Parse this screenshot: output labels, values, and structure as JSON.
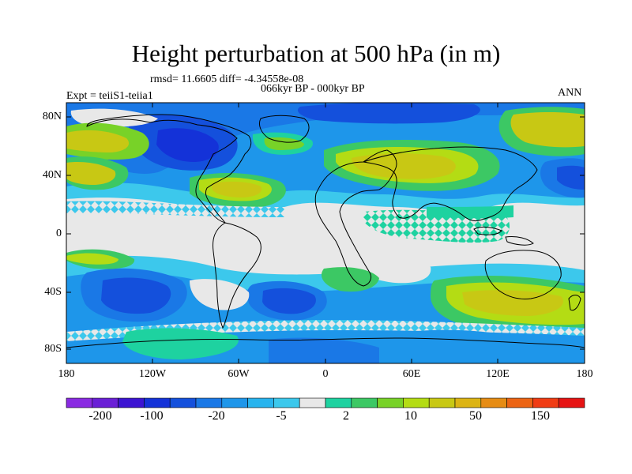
{
  "title": "Height perturbation at 500 hPa (in m)",
  "stats": "rmsd= 11.6605 diff= -4.34558e-08",
  "experiment": "Expt = teiiS1-teiia1",
  "period": "066kyr BP - 000kyr BP",
  "season": "ANN",
  "lat_ticks": [
    "80N",
    "40N",
    "0",
    "40S",
    "80S"
  ],
  "lon_ticks": [
    "180",
    "120W",
    "60W",
    "0",
    "60E",
    "120E",
    "180"
  ],
  "colorbar": {
    "colors": [
      "#8a2be2",
      "#6a1fd6",
      "#3c14d2",
      "#1432d8",
      "#1450dc",
      "#1a78e6",
      "#1e96ea",
      "#28b4ee",
      "#3cc8ec",
      "#e8e8e8",
      "#1ed2a0",
      "#3cc864",
      "#78d228",
      "#b4dc14",
      "#c8c814",
      "#dcb414",
      "#e68c14",
      "#ec6414",
      "#f03c14",
      "#e61414"
    ],
    "labels": [
      "-200",
      "-100",
      "-20",
      "-5",
      "2",
      "10",
      "50",
      "150"
    ]
  }
}
